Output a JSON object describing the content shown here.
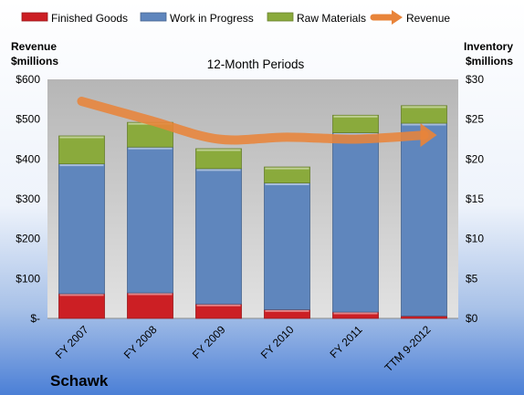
{
  "chart_data": {
    "type": "bar",
    "title": "12-Month Periods",
    "company": "Schawk",
    "left_axis_label": [
      "Revenue",
      "$millions"
    ],
    "right_axis_label": [
      "Inventory",
      "$millions"
    ],
    "categories": [
      "FY 2007",
      "FY 2008",
      "FY 2009",
      "FY 2010",
      "FY 2011",
      "TTM 9-2012"
    ],
    "series": [
      {
        "name": "Finished Goods",
        "kind": "bar",
        "axis": "right",
        "color": "#cc1f24",
        "values": [
          3.1,
          3.2,
          1.8,
          1.1,
          0.8,
          0.3
        ]
      },
      {
        "name": "Work in Progress",
        "kind": "bar",
        "axis": "right",
        "color": "#5f86bd",
        "values": [
          16.3,
          18.3,
          17.0,
          15.9,
          22.5,
          24.2
        ]
      },
      {
        "name": "Raw Materials",
        "kind": "bar",
        "axis": "right",
        "color": "#8aaa3c",
        "values": [
          3.5,
          3.1,
          2.5,
          2.0,
          2.2,
          2.2
        ]
      },
      {
        "name": "Revenue",
        "kind": "line",
        "axis": "left",
        "color": "#e8843a",
        "values": [
          545,
          497,
          450,
          455,
          450,
          460
        ]
      }
    ],
    "left_ylim": [
      0,
      600
    ],
    "left_ticks": [
      0,
      100,
      200,
      300,
      400,
      500,
      600
    ],
    "left_tick_labels": [
      "$-",
      "$100",
      "$200",
      "$300",
      "$400",
      "$500",
      "$600"
    ],
    "right_ylim": [
      0,
      30
    ],
    "right_ticks": [
      0,
      5,
      10,
      15,
      20,
      25,
      30
    ],
    "right_tick_labels": [
      "$0",
      "$5",
      "$10",
      "$15",
      "$20",
      "$25",
      "$30"
    ],
    "grid": false,
    "legend_position": "top"
  }
}
